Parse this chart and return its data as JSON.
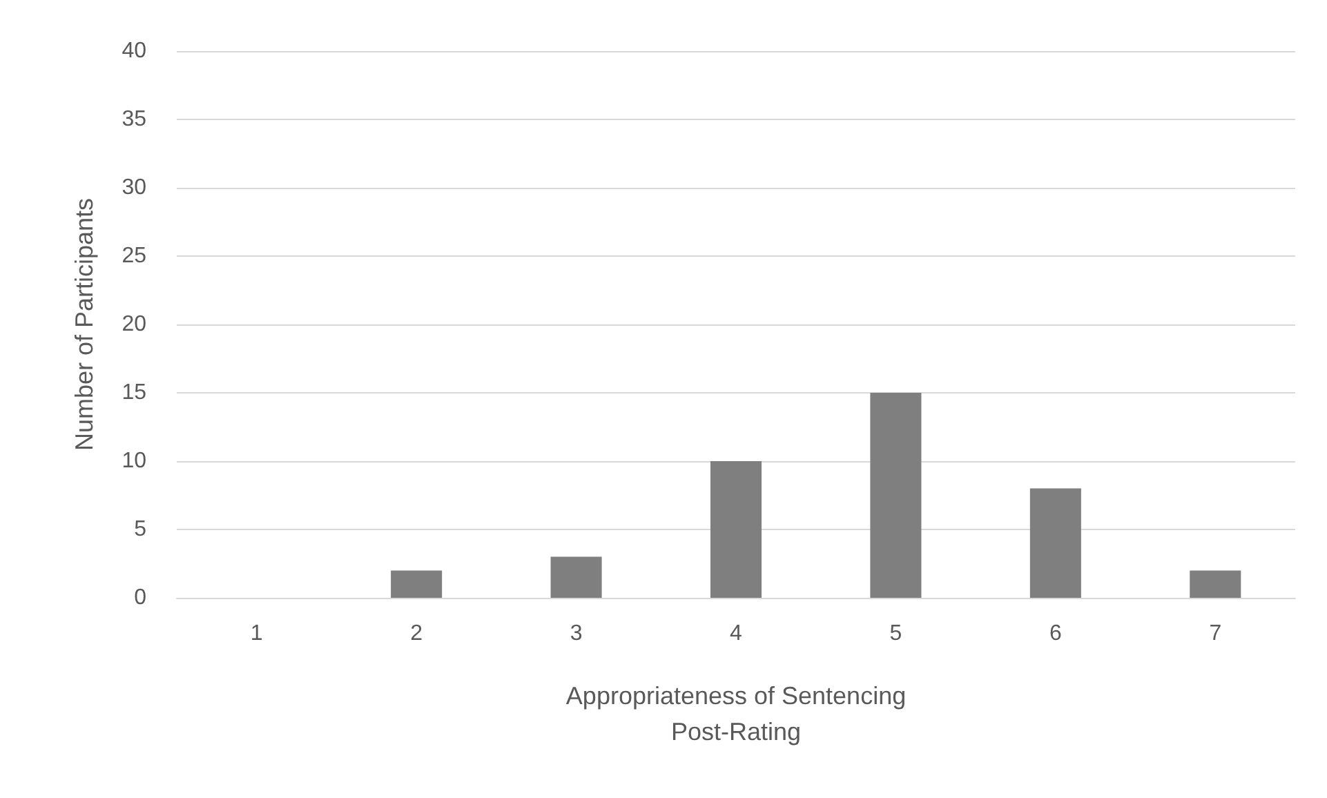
{
  "chart_data": {
    "type": "bar",
    "xlabel": "Appropriateness of Sentencing\nPost-Rating",
    "ylabel": "Number of Participants",
    "categories": [
      "1",
      "2",
      "3",
      "4",
      "5",
      "6",
      "7"
    ],
    "values": [
      0,
      2,
      3,
      10,
      15,
      8,
      2
    ],
    "color": "#7f7f7f",
    "ylim": [
      0,
      40
    ],
    "yticks": [
      0,
      5,
      10,
      15,
      20,
      25,
      30,
      35,
      40
    ],
    "grid": "y"
  }
}
